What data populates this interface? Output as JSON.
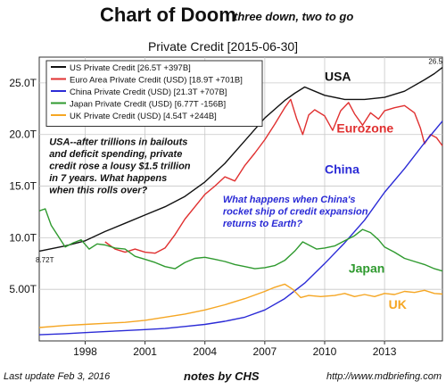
{
  "header": {
    "title": "Chart of Doom",
    "subtitle": "three down, two to go"
  },
  "footer": {
    "last_update": "Last update Feb  3, 2016",
    "notes": "notes by CHS",
    "url": "http://www.mdbriefing.com"
  },
  "chart_data": {
    "type": "line",
    "title": "Private Credit  [2015-06-30]",
    "xlabel": "",
    "ylabel": "",
    "xlim": [
      1995.7,
      2015.9
    ],
    "ylim": [
      0,
      27.5
    ],
    "x_ticks": [
      1998,
      2001,
      2004,
      2007,
      2010,
      2013
    ],
    "x_tick_labels": [
      "1998",
      "2001",
      "2004",
      "2007",
      "2010",
      "2013"
    ],
    "y_ticks": [
      5,
      10,
      15,
      20,
      25
    ],
    "y_tick_labels": [
      "5.00T",
      "10.0T",
      "15.0T",
      "20.0T",
      "25.0T"
    ],
    "grid": true,
    "legend_position": "top-left",
    "series": [
      {
        "name": "US Private Credit [26.5T +397B]",
        "color": "#111111",
        "x": [
          1995.7,
          1997,
          1998,
          1999,
          2000,
          2001,
          2002,
          2003,
          2004,
          2005,
          2006,
          2007,
          2008,
          2008.5,
          2009,
          2009.5,
          2010,
          2011,
          2012,
          2013,
          2014,
          2015,
          2015.5,
          2015.9
        ],
        "y": [
          8.7,
          9.2,
          9.7,
          10.6,
          11.4,
          12.2,
          13.0,
          14.0,
          15.4,
          17.2,
          19.4,
          21.6,
          23.3,
          24.0,
          24.6,
          24.2,
          23.8,
          23.4,
          23.4,
          23.6,
          24.2,
          25.3,
          25.9,
          26.5
        ]
      },
      {
        "name": "Euro Area Private Credit (USD) [18.9T +701B]",
        "color": "#e03030",
        "x": [
          1999.0,
          1999.5,
          2000.0,
          2000.5,
          2001.0,
          2001.5,
          2002.0,
          2002.5,
          2003.0,
          2003.5,
          2004.0,
          2004.5,
          2005.0,
          2005.5,
          2006.0,
          2006.5,
          2007.0,
          2007.5,
          2008.0,
          2008.3,
          2008.6,
          2008.9,
          2009.2,
          2009.5,
          2010.0,
          2010.4,
          2010.8,
          2011.2,
          2011.5,
          2011.9,
          2012.3,
          2012.7,
          2013.0,
          2013.5,
          2014.0,
          2014.5,
          2014.8,
          2015.0,
          2015.3,
          2015.6,
          2015.9
        ],
        "y": [
          9.6,
          8.9,
          8.6,
          8.9,
          8.6,
          8.5,
          9.0,
          10.3,
          11.8,
          13.0,
          14.2,
          15.0,
          15.9,
          15.5,
          17.0,
          18.2,
          19.5,
          21.0,
          22.6,
          23.4,
          21.5,
          20.0,
          21.9,
          22.4,
          21.8,
          20.4,
          22.3,
          23.1,
          22.0,
          20.9,
          22.1,
          21.5,
          22.3,
          22.6,
          22.8,
          22.1,
          20.6,
          19.1,
          20.0,
          19.7,
          18.9
        ]
      },
      {
        "name": "China Private Credit (USD) [21.3T +707B]",
        "color": "#2b2bd6",
        "x": [
          1995.7,
          1997,
          1998,
          1999,
          2000,
          2001,
          2002,
          2003,
          2004,
          2005,
          2006,
          2007,
          2008,
          2009,
          2010,
          2011,
          2012,
          2013,
          2014,
          2015,
          2015.9
        ],
        "y": [
          0.6,
          0.7,
          0.8,
          0.9,
          1.0,
          1.1,
          1.2,
          1.4,
          1.6,
          1.9,
          2.3,
          3.0,
          4.1,
          5.6,
          7.5,
          9.5,
          11.7,
          14.4,
          16.7,
          19.2,
          21.3
        ]
      },
      {
        "name": "Japan Private Credit (USD) [6.77T -156B]",
        "color": "#2f9a2f",
        "x": [
          1995.7,
          1996.0,
          1996.3,
          1996.7,
          1997.0,
          1997.4,
          1997.8,
          1998.2,
          1998.6,
          1999.0,
          1999.5,
          2000.0,
          2000.5,
          2001.0,
          2001.5,
          2002.0,
          2002.5,
          2003.0,
          2003.5,
          2004.0,
          2004.5,
          2005.0,
          2005.5,
          2006.0,
          2006.5,
          2007.0,
          2007.5,
          2008.0,
          2008.5,
          2008.9,
          2009.2,
          2009.6,
          2010.0,
          2010.5,
          2011.0,
          2011.5,
          2011.9,
          2012.3,
          2012.7,
          2013.0,
          2013.5,
          2014.0,
          2014.5,
          2015.0,
          2015.5,
          2015.9
        ],
        "y": [
          12.6,
          12.8,
          11.2,
          10.0,
          9.1,
          9.5,
          9.8,
          8.9,
          9.4,
          9.3,
          9.0,
          8.9,
          8.2,
          7.9,
          7.6,
          7.2,
          7.0,
          7.6,
          8.0,
          8.1,
          7.9,
          7.7,
          7.4,
          7.2,
          7.0,
          7.1,
          7.3,
          7.8,
          8.7,
          9.6,
          9.3,
          8.9,
          9.0,
          9.2,
          9.7,
          10.2,
          10.8,
          10.5,
          9.8,
          9.1,
          8.6,
          8.0,
          7.7,
          7.4,
          7.0,
          6.77
        ]
      },
      {
        "name": "UK Private Credit (USD) [4.54T +244B]",
        "color": "#f5a623",
        "x": [
          1995.7,
          1997,
          1998,
          1999,
          2000,
          2001,
          2002,
          2003,
          2004,
          2005,
          2006,
          2007,
          2007.5,
          2008.0,
          2008.4,
          2008.8,
          2009.2,
          2009.8,
          2010.5,
          2011.0,
          2011.5,
          2012.0,
          2012.5,
          2013.0,
          2013.5,
          2014.0,
          2014.5,
          2015.0,
          2015.5,
          2015.9
        ],
        "y": [
          1.3,
          1.5,
          1.6,
          1.7,
          1.8,
          2.0,
          2.3,
          2.6,
          3.0,
          3.5,
          4.1,
          4.8,
          5.2,
          5.5,
          5.0,
          4.2,
          4.4,
          4.3,
          4.4,
          4.6,
          4.3,
          4.5,
          4.3,
          4.6,
          4.5,
          4.8,
          4.7,
          4.9,
          4.6,
          4.54
        ]
      }
    ],
    "series_labels": [
      {
        "text": "USA",
        "color": "#111111",
        "x": 2010.0,
        "y": 25.2
      },
      {
        "text": "Eurozone",
        "color": "#e03030",
        "x": 2010.6,
        "y": 20.2
      },
      {
        "text": "China",
        "color": "#2b2bd6",
        "x": 2010.0,
        "y": 16.2
      },
      {
        "text": "Japan",
        "color": "#2f9a2f",
        "x": 2011.2,
        "y": 6.6
      },
      {
        "text": "UK",
        "color": "#f5a623",
        "x": 2013.2,
        "y": 3.1
      }
    ],
    "annotations": [
      {
        "lines": [
          "USA--after trillions in bailouts",
          "and deficit spending, private",
          "credit rose a lousy $1.5 trillion",
          "in 7 years. What happens",
          "when this rolls over?"
        ],
        "color": "#111111",
        "x": 1996.2,
        "y": 19.0
      },
      {
        "lines": [
          "What happens when China's",
          "rocket ship of credit expansion",
          "returns to Earth?"
        ],
        "color": "#2b2bd6",
        "x": 2004.9,
        "y": 13.4
      }
    ],
    "end_labels": [
      {
        "text": "26.5",
        "x": 2015.9,
        "y": 26.5
      },
      {
        "text": "8.72T",
        "x": 1995.7,
        "y": 8.72
      }
    ]
  }
}
